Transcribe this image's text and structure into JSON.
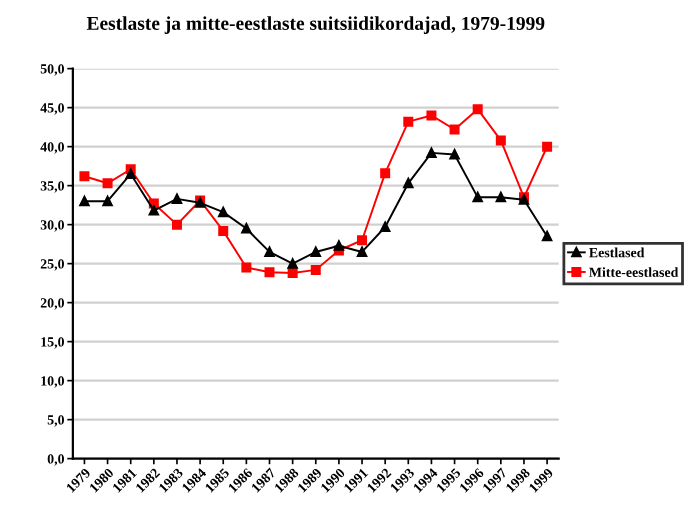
{
  "chart_data": {
    "type": "line",
    "title": "Eestlaste ja mitte-eestlaste suitsiidikordajad, 1979-1999",
    "categories": [
      "1979",
      "1980",
      "1981",
      "1982",
      "1983",
      "1984",
      "1985",
      "1986",
      "1987",
      "1988",
      "1989",
      "1990",
      "1991",
      "1992",
      "1993",
      "1994",
      "1995",
      "1996",
      "1997",
      "1998",
      "1999"
    ],
    "series": [
      {
        "name": "Eestlased",
        "color": "#000000",
        "marker": "triangle",
        "values": [
          33.0,
          33.0,
          36.5,
          31.8,
          33.3,
          32.8,
          31.6,
          29.5,
          26.5,
          25.0,
          26.5,
          27.3,
          26.5,
          29.7,
          35.3,
          39.2,
          39.0,
          33.5,
          33.5,
          33.2,
          28.5
        ]
      },
      {
        "name": "Mitte-eestlased",
        "color": "#ff0000",
        "marker": "square",
        "values": [
          36.2,
          35.3,
          37.1,
          32.7,
          30.0,
          33.1,
          29.2,
          24.5,
          23.9,
          23.8,
          24.2,
          26.7,
          28.0,
          36.6,
          43.2,
          44.0,
          42.2,
          44.8,
          40.8,
          33.5,
          40.0
        ]
      }
    ],
    "ylim": [
      0,
      50
    ],
    "yticks": [
      {
        "value": 0,
        "label": "0,0"
      },
      {
        "value": 5,
        "label": "5,0"
      },
      {
        "value": 10,
        "label": "10,0"
      },
      {
        "value": 15,
        "label": "15,0"
      },
      {
        "value": 20,
        "label": "20,0"
      },
      {
        "value": 25,
        "label": "25,0"
      },
      {
        "value": 30,
        "label": "30,0"
      },
      {
        "value": 35,
        "label": "35,0"
      },
      {
        "value": 40,
        "label": "40,0"
      },
      {
        "value": 45,
        "label": "45,0"
      },
      {
        "value": 50,
        "label": "50,0"
      }
    ],
    "grid": "y",
    "legend": "right"
  }
}
